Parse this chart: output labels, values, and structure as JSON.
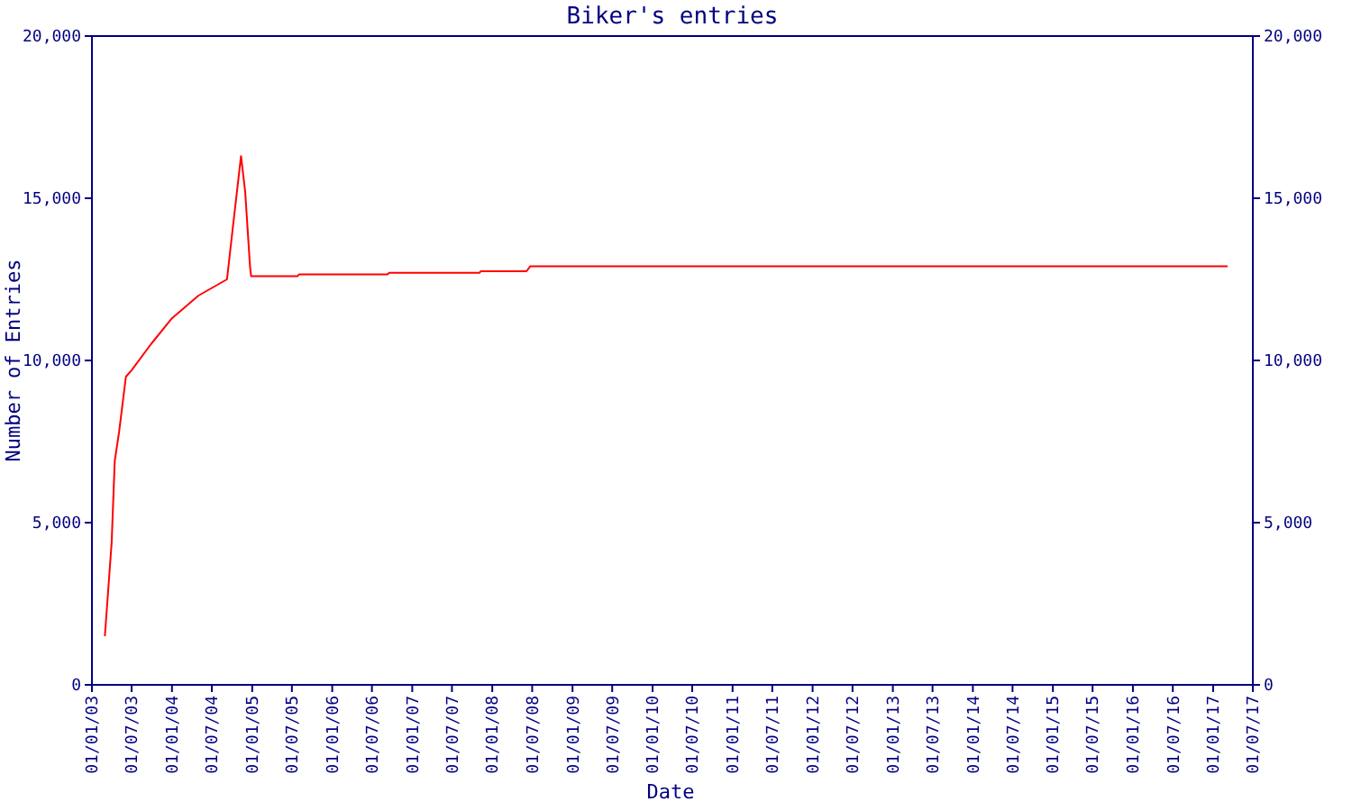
{
  "chart_data": {
    "type": "line",
    "title": "Biker's entries",
    "xlabel": "Date",
    "ylabel": "Number of Entries",
    "x": [
      "2003-03-01",
      "2003-04-01",
      "2003-04-15",
      "2003-05-05",
      "2003-05-25",
      "2003-06-05",
      "2003-07-01",
      "2003-09-27",
      "2004-01-01",
      "2004-05-01",
      "2004-09-08",
      "2004-10-03",
      "2004-11-11",
      "2004-11-30",
      "2004-12-22",
      "2004-12-27",
      "2005-07-26",
      "2005-08-03",
      "2006-09-10",
      "2006-09-18",
      "2007-11-03",
      "2007-11-10",
      "2008-06-05",
      "2008-06-22",
      "2017-03-08"
    ],
    "series": [
      {
        "color": "#ff0000",
        "values": [
          1500,
          4400,
          6900,
          7800,
          8900,
          9500,
          9700,
          10500,
          11300,
          12000,
          12500,
          14000,
          16300,
          15200,
          12900,
          12600,
          12600,
          12650,
          12650,
          12700,
          12700,
          12750,
          12750,
          12900,
          12900
        ]
      }
    ],
    "xlim": [
      "2003-01-01",
      "2017-07-01"
    ],
    "xticks": [
      {
        "value": "2003-01-01",
        "label": "01/01/03"
      },
      {
        "value": "2003-07-01",
        "label": "01/07/03"
      },
      {
        "value": "2004-01-01",
        "label": "01/01/04"
      },
      {
        "value": "2004-07-01",
        "label": "01/07/04"
      },
      {
        "value": "2005-01-01",
        "label": "01/01/05"
      },
      {
        "value": "2005-07-01",
        "label": "01/07/05"
      },
      {
        "value": "2006-01-01",
        "label": "01/01/06"
      },
      {
        "value": "2006-07-01",
        "label": "01/07/06"
      },
      {
        "value": "2007-01-01",
        "label": "01/01/07"
      },
      {
        "value": "2007-07-01",
        "label": "01/07/07"
      },
      {
        "value": "2008-01-01",
        "label": "01/01/08"
      },
      {
        "value": "2008-07-01",
        "label": "01/07/08"
      },
      {
        "value": "2009-01-01",
        "label": "01/01/09"
      },
      {
        "value": "2009-07-01",
        "label": "01/07/09"
      },
      {
        "value": "2010-01-01",
        "label": "01/01/10"
      },
      {
        "value": "2010-07-01",
        "label": "01/07/10"
      },
      {
        "value": "2011-01-01",
        "label": "01/01/11"
      },
      {
        "value": "2011-07-01",
        "label": "01/07/11"
      },
      {
        "value": "2012-01-01",
        "label": "01/01/12"
      },
      {
        "value": "2012-07-01",
        "label": "01/07/12"
      },
      {
        "value": "2013-01-01",
        "label": "01/01/13"
      },
      {
        "value": "2013-07-01",
        "label": "01/07/13"
      },
      {
        "value": "2014-01-01",
        "label": "01/01/14"
      },
      {
        "value": "2014-07-01",
        "label": "01/07/14"
      },
      {
        "value": "2015-01-01",
        "label": "01/01/15"
      },
      {
        "value": "2015-07-01",
        "label": "01/07/15"
      },
      {
        "value": "2016-01-01",
        "label": "01/01/16"
      },
      {
        "value": "2016-07-01",
        "label": "01/07/16"
      },
      {
        "value": "2017-01-01",
        "label": "01/01/17"
      },
      {
        "value": "2017-07-01",
        "label": "01/07/17"
      }
    ],
    "ylim": [
      0,
      20000
    ],
    "yticks": [
      0,
      {
        "value": 5000,
        "label": "5,000"
      },
      {
        "value": 10000,
        "label": "10,000"
      },
      {
        "value": 15000,
        "label": "15,000"
      },
      {
        "value": 20000,
        "label": "20,000"
      }
    ],
    "y2lim": [
      0,
      20000
    ],
    "y2ticks": [
      0,
      {
        "value": 5000,
        "label": "5,000"
      },
      {
        "value": 10000,
        "label": "10,000"
      },
      {
        "value": 15000,
        "label": "15,000"
      },
      {
        "value": 20000,
        "label": "20,000"
      }
    ]
  }
}
